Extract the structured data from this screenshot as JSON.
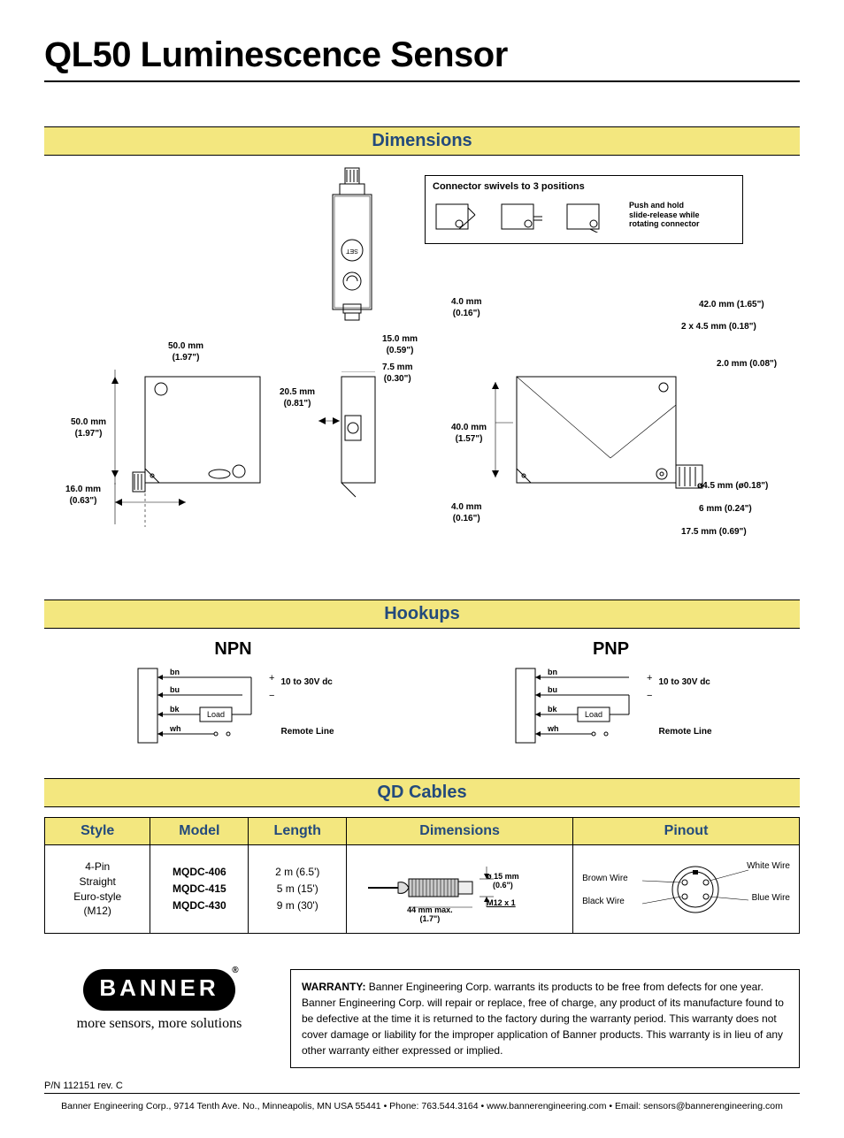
{
  "title": "QL50 Luminescence Sensor",
  "sections": {
    "dimensions": "Dimensions",
    "hookups": "Hookups",
    "qd": "QD Cables"
  },
  "connector_box": {
    "title": "Connector swivels to 3 positions",
    "note": "Push and hold slide-release while rotating connector"
  },
  "dims": {
    "w50": "50.0 mm\n(1.97\")",
    "h50": "50.0 mm\n(1.97\")",
    "d16": "16.0 mm\n(0.63\")",
    "d15": "15.0 mm\n(0.59\")",
    "d75": "7.5 mm\n(0.30\")",
    "d205": "20.5 mm\n(0.81\")",
    "d40_top": "4.0 mm\n(0.16\")",
    "d42": "42.0 mm (1.65\")",
    "d2x45": "2 x 4.5 mm (0.18\")",
    "d2": "2.0 mm (0.08\")",
    "d40": "40.0 mm\n(1.57\")",
    "d45": "ø4.5 mm (ø0.18\")",
    "d6": "6 mm (0.24\")",
    "d175": "17.5 mm (0.69\")",
    "d40_bot": "4.0 mm\n(0.16\")"
  },
  "hookups": {
    "npn": {
      "title": "NPN",
      "supply": "10 to 30V dc",
      "remote": "Remote Line",
      "load": "Load",
      "wires": [
        "bn",
        "bu",
        "bk",
        "wh"
      ]
    },
    "pnp": {
      "title": "PNP",
      "supply": "10 to 30V dc",
      "remote": "Remote Line",
      "load": "Load",
      "wires": [
        "bn",
        "bu",
        "bk",
        "wh"
      ]
    }
  },
  "qd_table": {
    "cols": [
      "Style",
      "Model",
      "Length",
      "Dimensions",
      "Pinout"
    ],
    "style": "4-Pin\nStraight\nEuro-style\n(M12)",
    "models": [
      "MQDC-406",
      "MQDC-415",
      "MQDC-430"
    ],
    "lengths": [
      "2 m (6.5')",
      "5 m (15')",
      "9 m (30')"
    ],
    "cable": {
      "dia": "ø 15 mm\n(0.6\")",
      "thread": "M12 x 1",
      "len": "44 mm max.\n(1.7\")"
    },
    "pinout": {
      "brown": "Brown Wire",
      "black": "Black Wire",
      "white": "White Wire",
      "blue": "Blue Wire"
    }
  },
  "footer": {
    "logo": "BANNER",
    "tagline": "more sensors, more solutions",
    "warranty_label": "WARRANTY:",
    "warranty": "Banner Engineering Corp. warrants its products to be free from defects for one year. Banner Engineering Corp. will repair or replace, free of charge, any product of its manufacture found to be defective at the time it is returned to the factory during the warranty period. This warranty does not cover damage or liability for the improper application of Banner products. This warranty is in lieu of any other warranty either expressed or implied.",
    "pn": "P/N 112151 rev. C",
    "company": "Banner Engineering Corp., 9714 Tenth Ave. No., Minneapolis, MN USA 55441 • Phone: 763.544.3164 • www.bannerengineering.com • Email: sensors@bannerengineering.com"
  },
  "colors": {
    "header_bg": "#f3e77f",
    "header_fg": "#234a7c"
  }
}
